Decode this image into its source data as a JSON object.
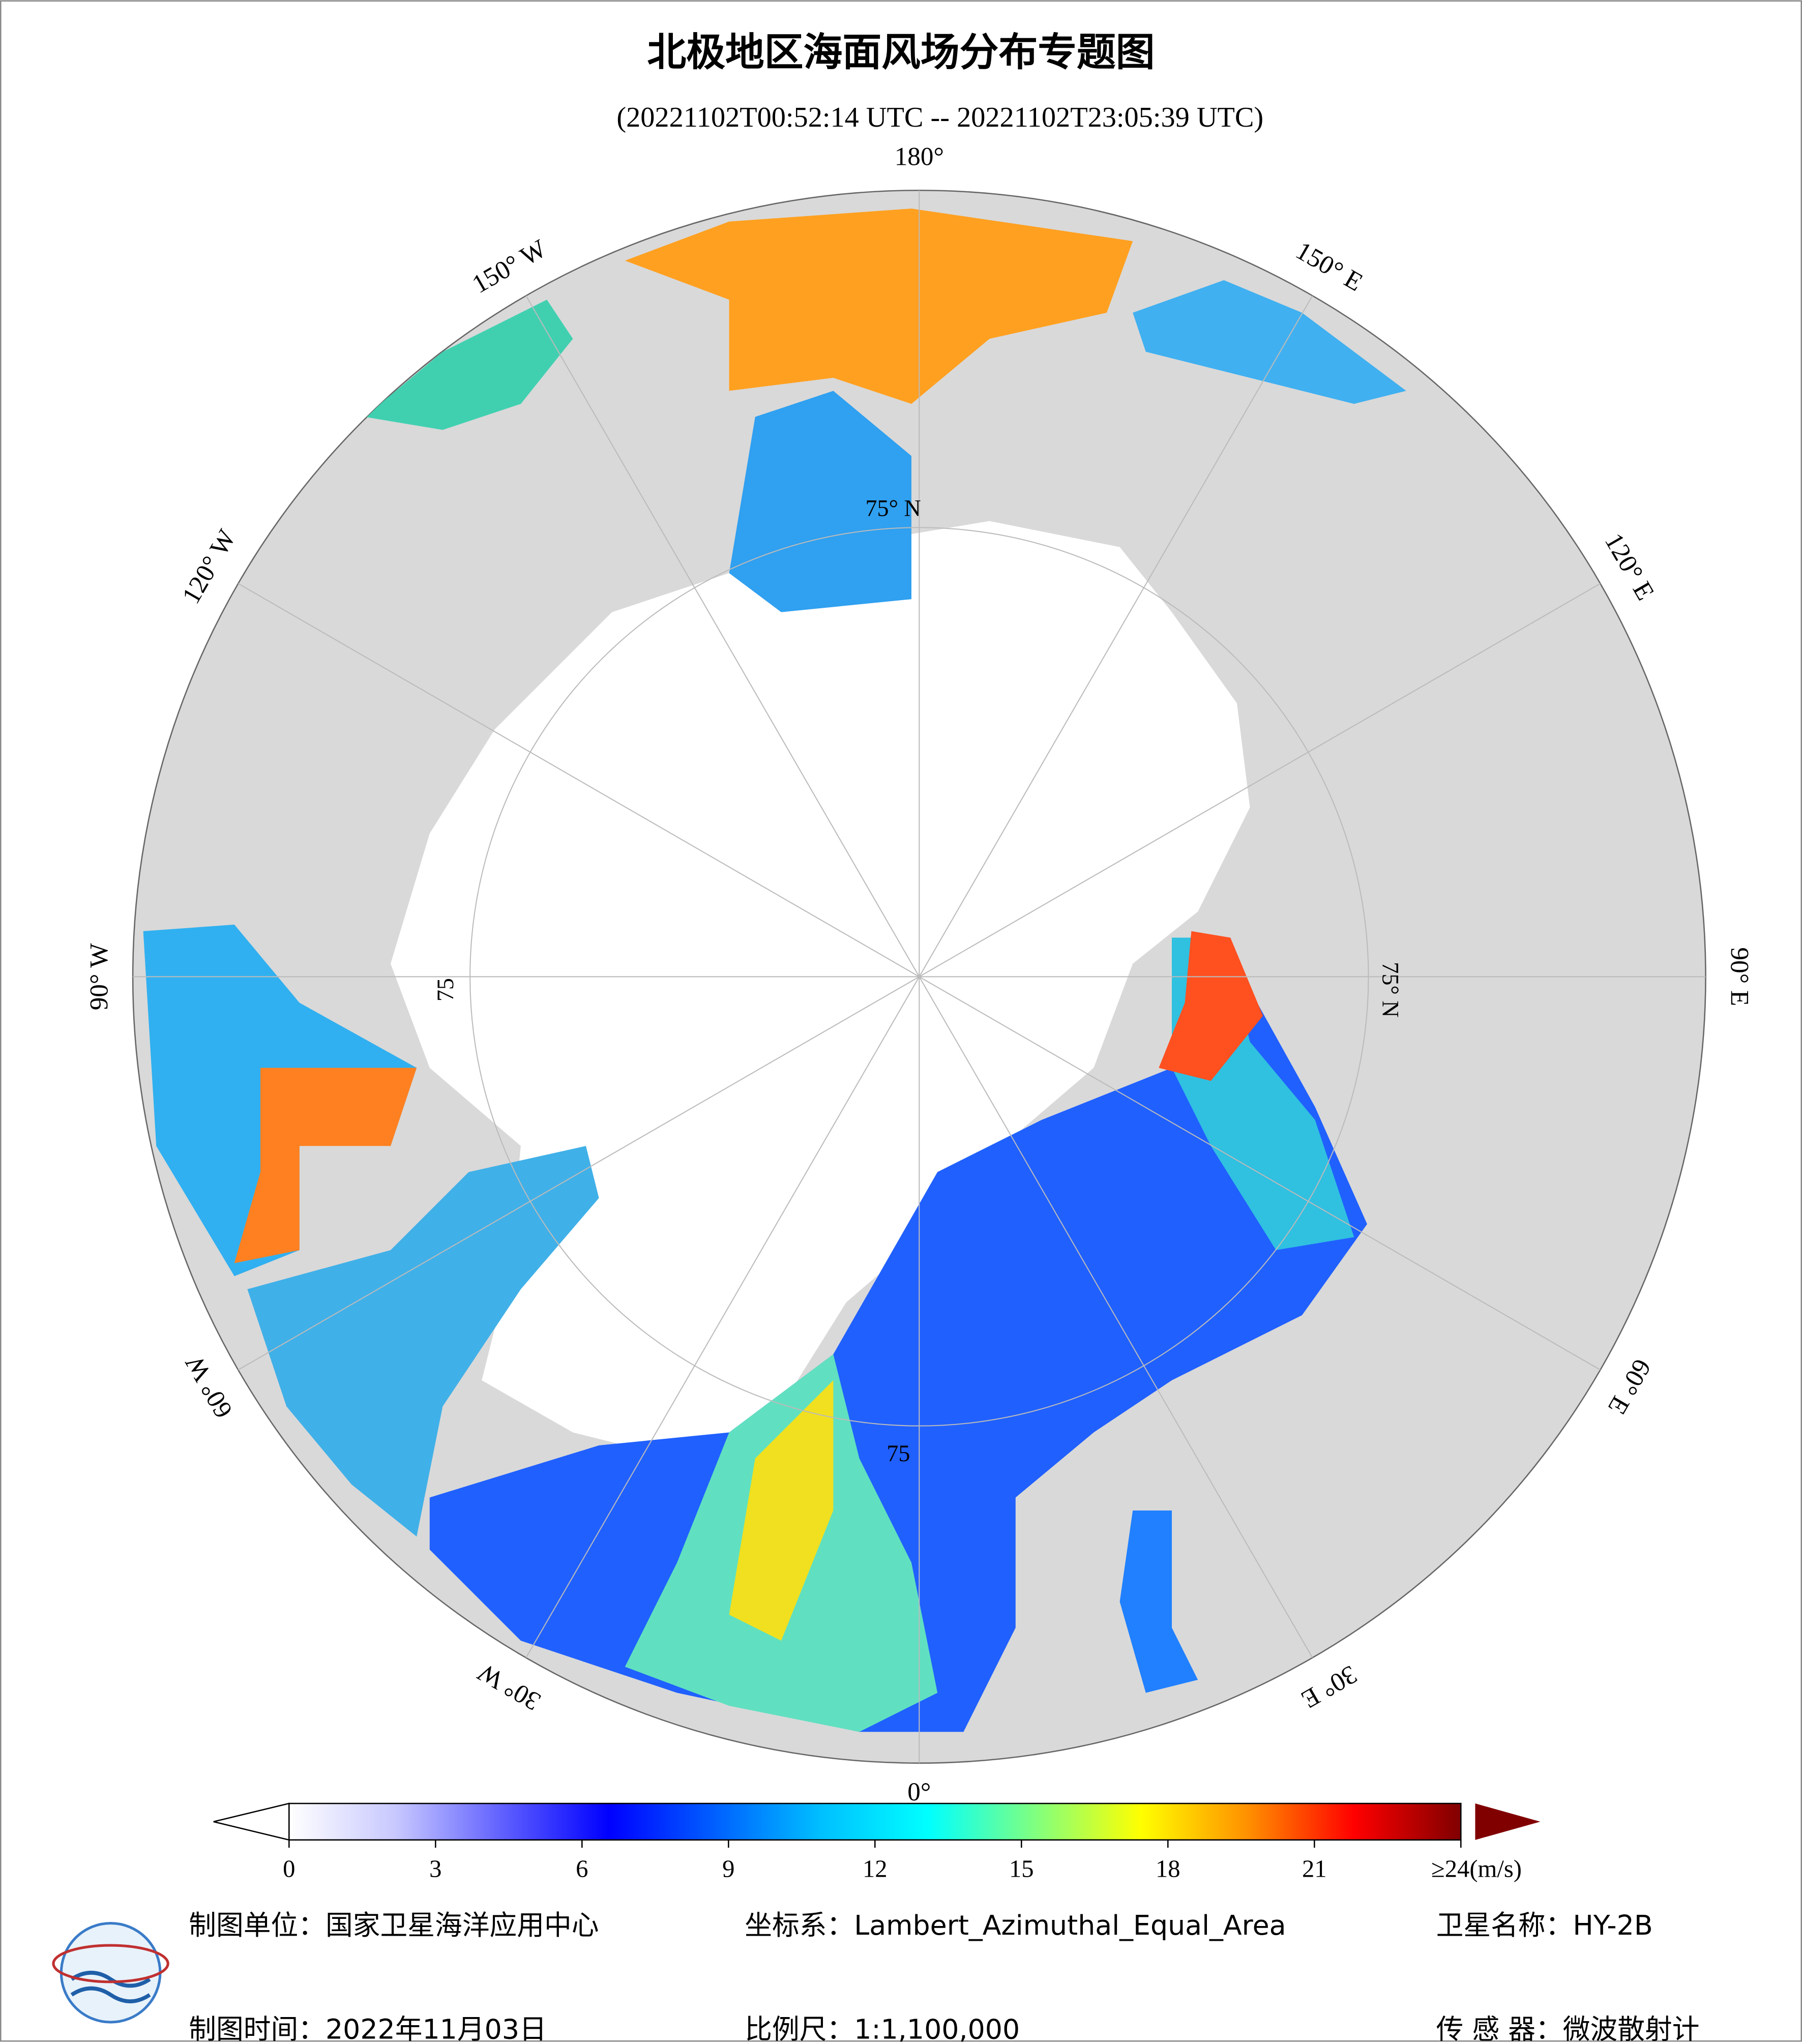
{
  "header": {
    "title": "北极地区海面风场分布专题图",
    "subtitle": "(20221102T00:52:14 UTC -- 20221102T23:05:39 UTC)"
  },
  "map": {
    "longitude_labels": [
      "180°",
      "150° E",
      "120° E",
      "90° E",
      "60° E",
      "30° E",
      "0°",
      "30° W",
      "60° W",
      "90° W",
      "120° W",
      "150° W"
    ],
    "latitude_labels": [
      "75° N",
      "75° N",
      "75",
      "75"
    ],
    "land_color": "#d9d9d9",
    "ice_color": "#ffffff"
  },
  "colorbar": {
    "range": [
      0,
      24
    ],
    "ticks": [
      0,
      3,
      6,
      9,
      12,
      15,
      18,
      21,
      {
        "value": 24,
        "label": "≥24(m/s)"
      }
    ],
    "colors": [
      "#ffffff",
      "#c8c8ff",
      "#6060ff",
      "#0000ff",
      "#0060ff",
      "#00c0ff",
      "#00ffff",
      "#80ff80",
      "#ffff00",
      "#ff9000",
      "#ff0000",
      "#800000"
    ]
  },
  "footer": {
    "unit": "制图单位：国家卫星海洋应用中心",
    "projection": "坐标系：Lambert_Azimuthal_Equal_Area",
    "satellite": "卫星名称：HY-2B",
    "date": "制图时间：2022年11月03日",
    "scale": "比例尺：1:1,100,000",
    "sensor": "传 感 器：微波散射计"
  }
}
